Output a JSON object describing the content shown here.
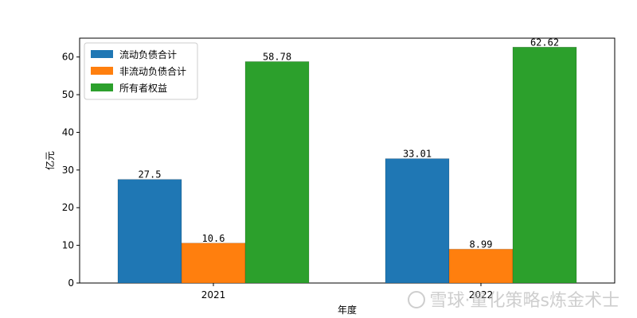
{
  "chart_data": {
    "type": "bar",
    "categories": [
      "2021",
      "2022"
    ],
    "series": [
      {
        "name": "流动负债合计",
        "values": [
          27.5,
          33.01
        ],
        "labels": [
          "27.5",
          "33.01"
        ],
        "color": "#1f77b4"
      },
      {
        "name": "非流动负债合计",
        "values": [
          10.6,
          8.99
        ],
        "labels": [
          "10.6",
          "8.99"
        ],
        "color": "#ff7f0e"
      },
      {
        "name": "所有者权益",
        "values": [
          58.78,
          62.62
        ],
        "labels": [
          "58.78",
          "62.62"
        ],
        "color": "#2ca02c"
      }
    ],
    "xlabel": "年度",
    "ylabel": "亿元",
    "ylim": [
      0,
      65
    ],
    "yticks": [
      0,
      10,
      20,
      30,
      40,
      50,
      60
    ],
    "legend_position": "top-left",
    "grid": false
  },
  "watermark": "雪球·量化策略s炼金术士"
}
